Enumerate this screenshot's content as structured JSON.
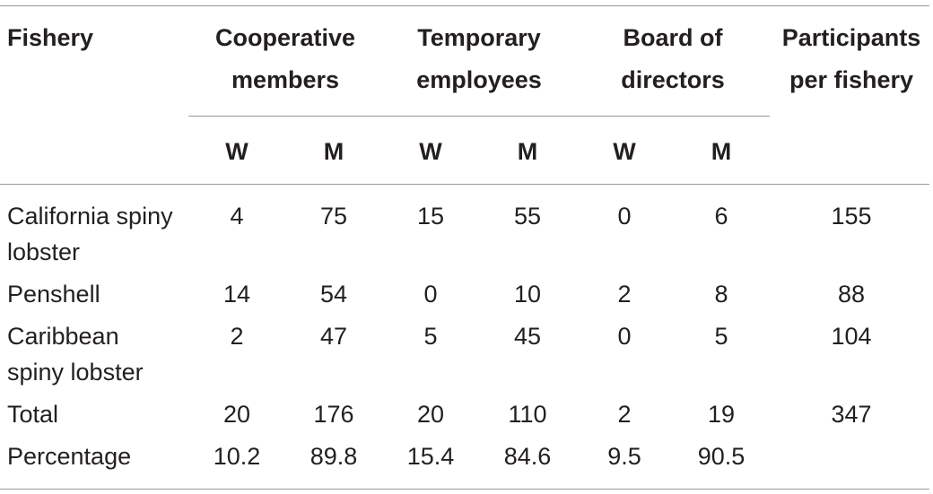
{
  "table": {
    "header": {
      "fishery": "Fishery",
      "groups": [
        {
          "line1": "Cooperative",
          "line2": "members"
        },
        {
          "line1": "Temporary",
          "line2": "employees"
        },
        {
          "line1": "Board of",
          "line2": "directors"
        }
      ],
      "participants": {
        "line1": "Participants",
        "line2": "per fishery"
      },
      "sub": [
        "W",
        "M",
        "W",
        "M",
        "W",
        "M"
      ]
    },
    "rows": [
      {
        "label": [
          "California spiny",
          "lobster"
        ],
        "values": [
          "4",
          "75",
          "15",
          "55",
          "0",
          "6"
        ],
        "participants": "155"
      },
      {
        "label": [
          "Penshell"
        ],
        "values": [
          "14",
          "54",
          "0",
          "10",
          "2",
          "8"
        ],
        "participants": "88"
      },
      {
        "label": [
          "Caribbean",
          "spiny lobster"
        ],
        "values": [
          "2",
          "47",
          "5",
          "45",
          "0",
          "5"
        ],
        "participants": "104"
      },
      {
        "label": [
          "Total"
        ],
        "values": [
          "20",
          "176",
          "20",
          "110",
          "2",
          "19"
        ],
        "participants": "347"
      },
      {
        "label": [
          "Percentage"
        ],
        "values": [
          "10.2",
          "89.8",
          "15.4",
          "84.6",
          "9.5",
          "90.5"
        ],
        "participants": ""
      }
    ]
  }
}
